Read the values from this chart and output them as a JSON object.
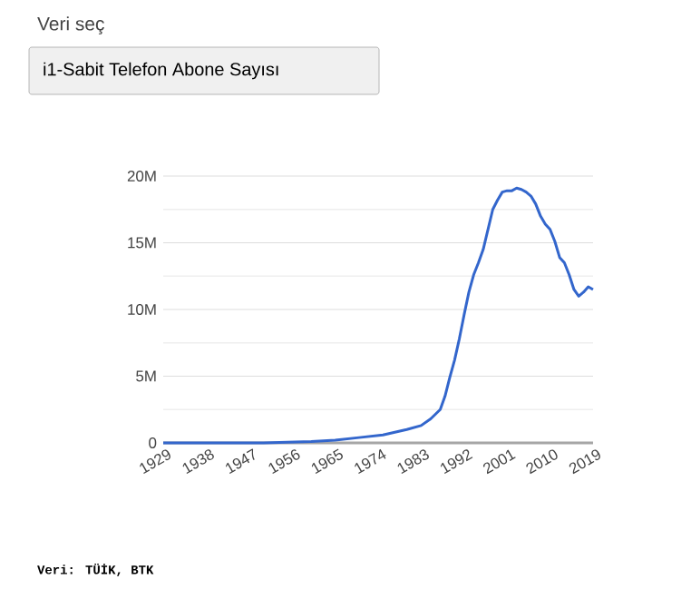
{
  "chart_data": {
    "type": "line",
    "title": "i1-Sabit Telefon Abone Sayısı",
    "annotations": [
      "Veri seç",
      "Veri: TÜİK, BTK"
    ],
    "x": [
      1929,
      1950,
      1960,
      1965,
      1970,
      1975,
      1980,
      1983,
      1985,
      1987,
      1988,
      1989,
      1990,
      1991,
      1992,
      1993,
      1994,
      1995,
      1996,
      1997,
      1998,
      1999,
      2000,
      2001,
      2002,
      2003,
      2004,
      2005,
      2006,
      2007,
      2008,
      2009,
      2010,
      2011,
      2012,
      2013,
      2014,
      2015,
      2016,
      2017,
      2018,
      2019
    ],
    "series": [
      {
        "color": "#3366cc",
        "values": [
          0,
          0,
          100000,
          200000,
          400000,
          600000,
          1000000,
          1300000,
          1800000,
          2500000,
          3500000,
          4900000,
          6200000,
          7800000,
          9600000,
          11300000,
          12600000,
          13500000,
          14500000,
          16000000,
          17500000,
          18200000,
          18800000,
          18900000,
          18900000,
          19100000,
          19000000,
          18800000,
          18500000,
          17900000,
          17000000,
          16400000,
          16000000,
          15100000,
          13900000,
          13500000,
          12600000,
          11500000,
          11000000,
          11300000,
          11700000,
          11500000
        ]
      }
    ],
    "xlim": [
      1929,
      2019
    ],
    "xticks": [
      1929,
      1938,
      1947,
      1956,
      1965,
      1974,
      1983,
      1992,
      2001,
      2010,
      2019
    ],
    "ylim": [
      0,
      20000000
    ],
    "yticks": [
      {
        "value": 0,
        "label": "0"
      },
      {
        "value": 2500000,
        "label": null
      },
      {
        "value": 5000000,
        "label": "5M"
      },
      {
        "value": 7500000,
        "label": null
      },
      {
        "value": 10000000,
        "label": "10M"
      },
      {
        "value": 12500000,
        "label": null
      },
      {
        "value": 15000000,
        "label": "15M"
      },
      {
        "value": 17500000,
        "label": null
      },
      {
        "value": 20000000,
        "label": "20M"
      }
    ],
    "grid": "y",
    "marker": "none",
    "line_style": "solid"
  }
}
